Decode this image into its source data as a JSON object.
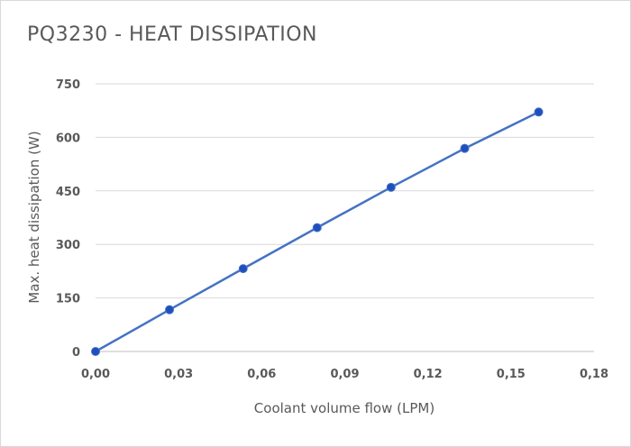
{
  "chart_data": {
    "type": "line",
    "title": "PQ3230 - HEAT DISSIPATION",
    "xlabel": "Coolant volume flow (LPM)",
    "ylabel": "Max. heat dissipation (W)",
    "xlim": [
      0,
      0.18
    ],
    "ylim": [
      0,
      750
    ],
    "xticks": [
      "0,00",
      "0,03",
      "0,06",
      "0,09",
      "0,12",
      "0,15",
      "0,18"
    ],
    "yticks": [
      "0",
      "150",
      "300",
      "450",
      "600",
      "750"
    ],
    "grid": true,
    "legend": "none",
    "series": [
      {
        "x": [
          0.0,
          0.0267,
          0.0533,
          0.08,
          0.1067,
          0.1333,
          0.16
        ],
        "y": [
          0,
          117,
          232,
          347,
          460,
          569,
          671
        ],
        "color": "#4472c4",
        "marker_color": "#1f4fbf"
      }
    ]
  }
}
